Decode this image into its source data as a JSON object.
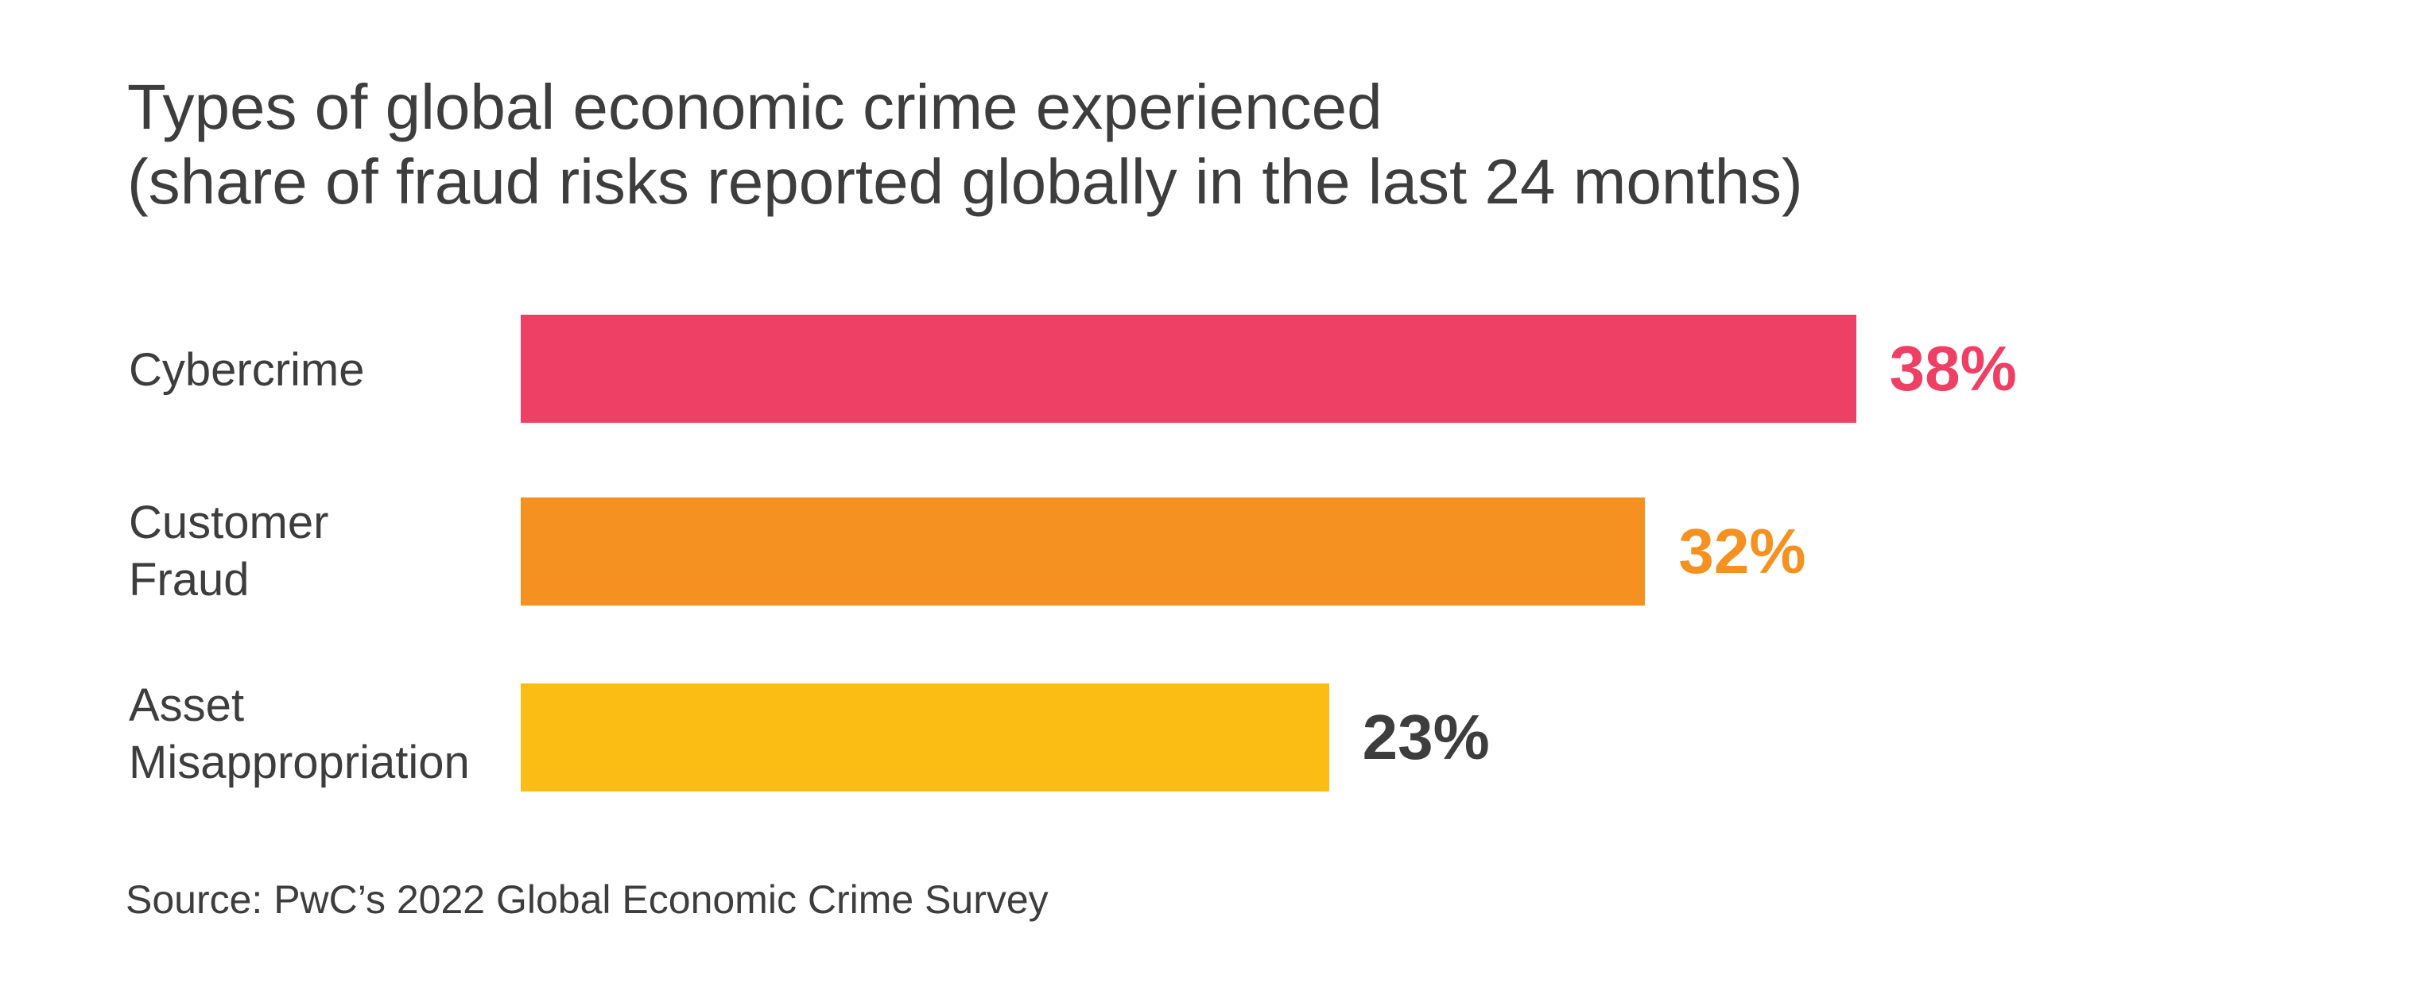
{
  "chart_data": {
    "type": "bar",
    "orientation": "horizontal",
    "title_lines": [
      "Types of global economic crime experienced",
      "(share of fraud risks reported globally in the last 24 months)"
    ],
    "categories": [
      {
        "lines": [
          "Cybercrime"
        ]
      },
      {
        "lines": [
          "Customer",
          "Fraud"
        ]
      },
      {
        "lines": [
          "Asset",
          "Misappropriation"
        ]
      }
    ],
    "values": [
      38,
      32,
      23
    ],
    "value_labels": [
      "38%",
      "32%",
      "23%"
    ],
    "bar_colors": [
      "#ee4065",
      "#f59121",
      "#fbbc14"
    ],
    "label_colors": [
      "#ee4065",
      "#f59121",
      "#3d3d3d"
    ],
    "xlim": [
      0,
      45
    ],
    "grid": false,
    "legend": "none",
    "source": "Source: PwC’s 2022 Global Economic Crime Survey"
  }
}
